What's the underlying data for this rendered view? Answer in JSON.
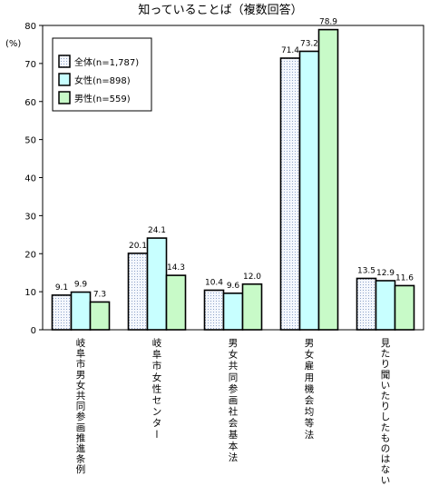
{
  "chart_data": {
    "type": "bar",
    "title": "知っていることば（複数回答）",
    "ylabel": "(%)",
    "ylim": [
      0,
      80
    ],
    "yticks": [
      0,
      10,
      20,
      30,
      40,
      50,
      60,
      70,
      80
    ],
    "grid": false,
    "legend": "top-left",
    "categories": [
      "岐阜市男女共同参画推進条例",
      "岐阜市女性センター",
      "男女共同参画社会基本法",
      "男女雇用機会均等法",
      "見たり聞いたりしたものはない"
    ],
    "series": [
      {
        "name": "全体(n=1,787)",
        "values": [
          9.1,
          20.1,
          10.4,
          71.4,
          13.5
        ],
        "labels": [
          "9.1",
          "20.1",
          "10.4",
          "71.4",
          "13.5"
        ],
        "color": "#eef2fa"
      },
      {
        "name": "女性(n=898)",
        "values": [
          9.9,
          24.1,
          9.6,
          73.2,
          12.9
        ],
        "labels": [
          "9.9",
          "24.1",
          "9.6",
          "73.2",
          "12.9"
        ],
        "color": "#c8ffff"
      },
      {
        "name": "男性(n=559)",
        "values": [
          7.3,
          14.3,
          12.0,
          78.9,
          11.6
        ],
        "labels": [
          "7.3",
          "14.3",
          "12.0",
          "78.9",
          "11.6"
        ],
        "color": "#c8fac8"
      }
    ]
  }
}
